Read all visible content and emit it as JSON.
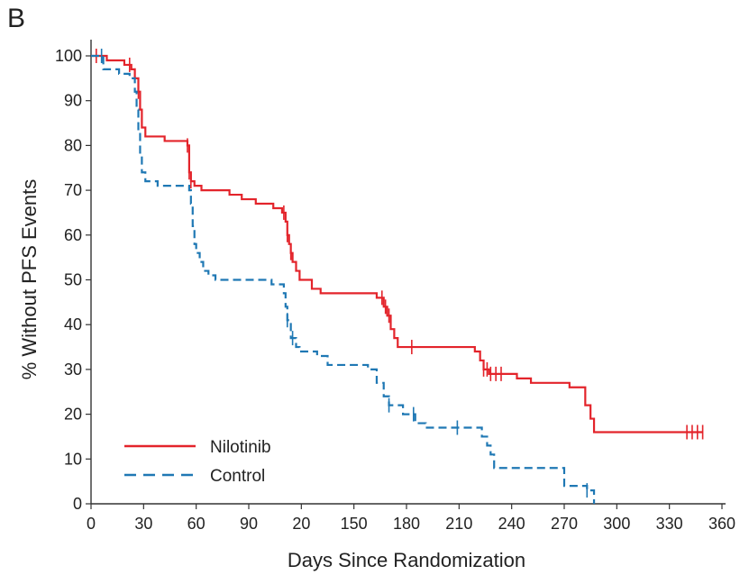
{
  "panel_label": "B",
  "chart_data": {
    "type": "line",
    "title": "",
    "xlabel": "Days Since Randomization",
    "ylabel": "% Without PFS Events",
    "xlim": [
      0,
      360
    ],
    "ylim": [
      0,
      100
    ],
    "x_tick_labels": [
      "0",
      "30",
      "60",
      "90",
      "20",
      "150",
      "180",
      "210",
      "240",
      "270",
      "300",
      "330",
      "360"
    ],
    "y_tick_labels": [
      "0",
      "10",
      "20",
      "30",
      "40",
      "50",
      "60",
      "70",
      "80",
      "90",
      "100"
    ],
    "legend": "bottom-left",
    "grid": false,
    "series": [
      {
        "name": "Nilotinib",
        "color": "#e3242b",
        "style": "solid",
        "steps": [
          [
            0,
            100
          ],
          [
            9,
            99
          ],
          [
            19,
            98
          ],
          [
            23,
            97
          ],
          [
            25,
            95
          ],
          [
            27,
            92
          ],
          [
            28,
            88
          ],
          [
            29,
            84
          ],
          [
            31,
            82
          ],
          [
            42,
            81
          ],
          [
            55,
            80
          ],
          [
            56,
            74
          ],
          [
            57,
            72
          ],
          [
            59,
            71
          ],
          [
            63,
            70
          ],
          [
            79,
            69
          ],
          [
            86,
            68
          ],
          [
            94,
            67
          ],
          [
            104,
            66
          ],
          [
            109,
            65
          ],
          [
            111,
            63
          ],
          [
            112,
            60
          ],
          [
            113,
            58
          ],
          [
            114,
            56
          ],
          [
            115,
            54
          ],
          [
            117,
            52
          ],
          [
            119,
            50
          ],
          [
            126,
            48
          ],
          [
            131,
            47
          ],
          [
            163,
            46
          ],
          [
            167,
            44
          ],
          [
            169,
            42
          ],
          [
            171,
            39
          ],
          [
            173,
            37
          ],
          [
            175,
            35
          ],
          [
            219,
            34
          ],
          [
            222,
            32
          ],
          [
            224,
            30
          ],
          [
            227,
            29
          ],
          [
            243,
            28
          ],
          [
            251,
            27
          ],
          [
            273,
            26
          ],
          [
            282,
            22
          ],
          [
            285,
            19
          ],
          [
            287,
            16
          ],
          [
            349,
            16
          ]
        ],
        "censor_x": [
          3,
          22,
          27,
          55,
          56,
          57,
          110,
          112,
          114,
          166,
          168,
          170,
          183,
          224,
          226,
          228,
          231,
          234,
          340,
          343,
          346,
          349
        ]
      },
      {
        "name": "Control",
        "color": "#1f78b4",
        "style": "dashed",
        "steps": [
          [
            0,
            100
          ],
          [
            7,
            97
          ],
          [
            16,
            96
          ],
          [
            22,
            95
          ],
          [
            25,
            92
          ],
          [
            26,
            88
          ],
          [
            27,
            83
          ],
          [
            28,
            78
          ],
          [
            29,
            74
          ],
          [
            31,
            72
          ],
          [
            38,
            71
          ],
          [
            56,
            70
          ],
          [
            57,
            67
          ],
          [
            58,
            62
          ],
          [
            59,
            58
          ],
          [
            60,
            56
          ],
          [
            62,
            54
          ],
          [
            64,
            52
          ],
          [
            67,
            51
          ],
          [
            71,
            50
          ],
          [
            103,
            49
          ],
          [
            110,
            47
          ],
          [
            111,
            44
          ],
          [
            112,
            41
          ],
          [
            114,
            37
          ],
          [
            117,
            35
          ],
          [
            119,
            34
          ],
          [
            129,
            33
          ],
          [
            135,
            31
          ],
          [
            158,
            30
          ],
          [
            163,
            27
          ],
          [
            167,
            24
          ],
          [
            170,
            22
          ],
          [
            178,
            20
          ],
          [
            185,
            18
          ],
          [
            191,
            17
          ],
          [
            223,
            15
          ],
          [
            226,
            13
          ],
          [
            228,
            11
          ],
          [
            230,
            8
          ],
          [
            270,
            4
          ],
          [
            283,
            3
          ],
          [
            287,
            0
          ]
        ],
        "censor_x": [
          6,
          112,
          115,
          170,
          184,
          209,
          283
        ]
      }
    ]
  }
}
